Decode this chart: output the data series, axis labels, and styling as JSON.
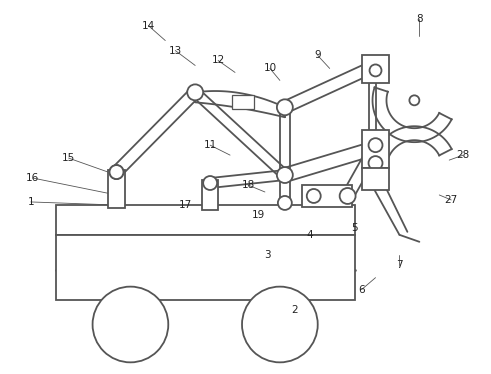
{
  "bg_color": "#ffffff",
  "line_color": "#555555",
  "line_width": 1.3,
  "figsize": [
    4.91,
    3.74
  ],
  "dpi": 100
}
